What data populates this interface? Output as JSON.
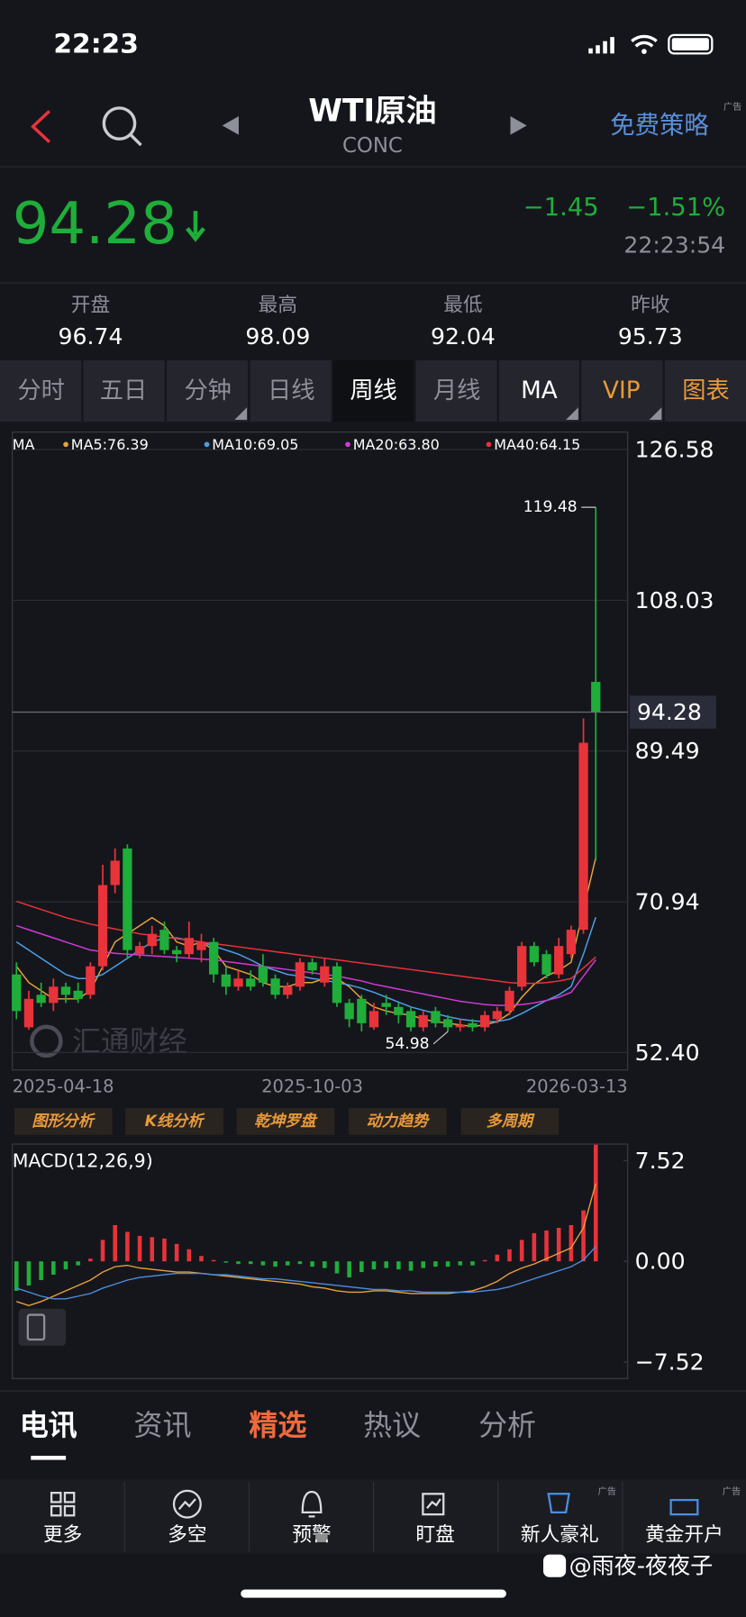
{
  "status_bar": {
    "time": "22:23"
  },
  "header": {
    "title": "WTI原油",
    "subtitle": "CONC",
    "action": "免费策略",
    "ad_tag": "广告"
  },
  "quote": {
    "price": "94.28",
    "change": "−1.45",
    "change_pct": "−1.51%",
    "time": "22:23:54",
    "stats": [
      {
        "label": "开盘",
        "value": "96.74"
      },
      {
        "label": "最高",
        "value": "98.09"
      },
      {
        "label": "最低",
        "value": "92.04"
      },
      {
        "label": "昨收",
        "value": "95.73"
      }
    ]
  },
  "period_tabs": [
    "分时",
    "五日",
    "分钟",
    "日线",
    "周线",
    "月线",
    "MA",
    "VIP",
    "图表"
  ],
  "chart_data": [
    {
      "type": "candlestick",
      "ma_label": "MA",
      "watermark": "汇通财经",
      "categories": [
        "2025-04-18",
        null,
        null,
        null,
        null,
        null,
        null,
        null,
        null,
        null,
        null,
        null,
        null,
        null,
        null,
        null,
        null,
        null,
        null,
        null,
        null,
        null,
        null,
        null,
        "2025-10-03",
        null,
        null,
        null,
        null,
        null,
        null,
        null,
        null,
        null,
        null,
        null,
        null,
        null,
        null,
        null,
        null,
        null,
        null,
        null,
        null,
        null,
        null,
        "2026-03-13"
      ],
      "candles": {
        "open": [
          62.0,
          55.5,
          59.5,
          58.5,
          60.5,
          60.0,
          59.5,
          63.0,
          73.0,
          77.5,
          64.5,
          65.5,
          67.5,
          65.0,
          64.5,
          65.0,
          66.0,
          62.0,
          60.5,
          61.5,
          63.0,
          61.5,
          59.5,
          60.5,
          63.5,
          61.0,
          63.0,
          58.5,
          59.0,
          55.5,
          58.5,
          58.0,
          57.5,
          55.5,
          57.5,
          56.5,
          55.5,
          56.0,
          55.5,
          56.5,
          57.5,
          60.5,
          65.5,
          64.5,
          62.0,
          64.5,
          67.5,
          98.0
        ],
        "high": [
          63.5,
          60.0,
          61.0,
          61.5,
          61.0,
          61.0,
          63.5,
          75.5,
          77.5,
          78.0,
          66.0,
          68.0,
          68.5,
          65.5,
          68.5,
          67.0,
          66.5,
          63.0,
          62.5,
          62.5,
          64.5,
          62.0,
          61.0,
          64.0,
          64.0,
          64.0,
          63.5,
          59.0,
          59.5,
          58.5,
          59.5,
          58.5,
          58.0,
          57.5,
          58.0,
          57.0,
          56.5,
          56.5,
          57.5,
          58.0,
          60.5,
          66.0,
          66.0,
          65.0,
          66.5,
          68.0,
          93.5,
          119.48
        ],
        "low": [
          56.5,
          55.2,
          58.0,
          57.5,
          58.5,
          58.5,
          59.0,
          62.5,
          72.0,
          64.0,
          64.0,
          64.5,
          64.5,
          63.5,
          64.0,
          63.5,
          61.0,
          59.5,
          60.0,
          60.0,
          60.5,
          59.0,
          59.0,
          60.0,
          62.0,
          60.5,
          58.0,
          55.5,
          55.0,
          55.2,
          57.0,
          56.0,
          55.0,
          55.0,
          55.5,
          54.98,
          55.0,
          55.0,
          55.0,
          56.0,
          57.0,
          60.0,
          63.0,
          61.5,
          61.5,
          64.0,
          67.0,
          76.0
        ],
        "close": [
          57.5,
          59.0,
          58.5,
          60.5,
          59.5,
          59.0,
          63.0,
          73.0,
          76.0,
          65.0,
          65.5,
          67.0,
          65.0,
          64.5,
          66.5,
          66.0,
          62.0,
          60.5,
          61.5,
          60.5,
          61.0,
          59.5,
          60.5,
          63.5,
          62.5,
          63.0,
          58.5,
          56.5,
          56.0,
          57.5,
          58.0,
          57.0,
          55.5,
          57.0,
          56.0,
          55.5,
          55.8,
          55.5,
          57.0,
          57.5,
          60.0,
          65.5,
          63.5,
          62.0,
          65.5,
          67.5,
          90.5,
          94.28
        ]
      },
      "up_color": "#e8333a",
      "down_color": "#1fae3a",
      "series": [
        {
          "name": "MA5:76.39",
          "color": "#e8a13a",
          "values": [
            63,
            61,
            60,
            59,
            59,
            59,
            60,
            63,
            66,
            67,
            68,
            69,
            68,
            66,
            65.5,
            66,
            65,
            63,
            62.5,
            62,
            61,
            60.5,
            60.5,
            61,
            61,
            61.5,
            61.5,
            60.5,
            59,
            58,
            57.5,
            57.2,
            57,
            56.5,
            56.2,
            56,
            55.8,
            55.6,
            55.8,
            56.2,
            57.2,
            59.2,
            60.8,
            61.8,
            62.5,
            63.5,
            70,
            76.39
          ]
        },
        {
          "name": "MA10:69.05",
          "color": "#4aa0e8",
          "values": [
            66,
            65,
            64,
            63,
            62,
            61.5,
            61.5,
            62,
            63,
            64,
            65,
            66,
            66.5,
            66.5,
            66.2,
            66,
            65.5,
            65,
            64.5,
            63.8,
            63,
            62.5,
            62,
            61.8,
            61.5,
            61.3,
            61,
            60.7,
            60.3,
            59.8,
            59.2,
            58.6,
            58,
            57.6,
            57.2,
            56.8,
            56.5,
            56.3,
            56.2,
            56.2,
            56.5,
            57.2,
            58,
            58.8,
            59.5,
            60.5,
            64.5,
            69.05
          ]
        },
        {
          "name": "MA20:63.80",
          "color": "#d23ad6",
          "values": [
            68,
            67.5,
            67,
            66.5,
            66,
            65.5,
            65,
            64.8,
            64.6,
            64.5,
            64.4,
            64.3,
            64.2,
            64.1,
            64,
            63.9,
            63.8,
            63.6,
            63.4,
            63.2,
            63,
            62.8,
            62.6,
            62.4,
            62.2,
            62,
            61.8,
            61.5,
            61.2,
            60.8,
            60.5,
            60.2,
            59.9,
            59.6,
            59.3,
            59,
            58.7,
            58.5,
            58.3,
            58.2,
            58.2,
            58.3,
            58.5,
            58.8,
            59.2,
            59.8,
            61.8,
            63.8
          ]
        },
        {
          "name": "MA40:64.15",
          "color": "#e8333a",
          "values": [
            71,
            70.5,
            70,
            69.5,
            69,
            68.6,
            68.2,
            67.9,
            67.6,
            67.3,
            67,
            66.8,
            66.6,
            66.4,
            66.2,
            66,
            65.8,
            65.6,
            65.4,
            65.2,
            65,
            64.8,
            64.6,
            64.4,
            64.2,
            64,
            63.8,
            63.6,
            63.4,
            63.2,
            63,
            62.8,
            62.6,
            62.4,
            62.2,
            62,
            61.8,
            61.6,
            61.4,
            61.2,
            61,
            60.9,
            60.9,
            61,
            61.2,
            61.5,
            62.8,
            64.15
          ]
        }
      ],
      "ylim": [
        50.25,
        128.73
      ],
      "yticks": [
        126.58,
        108.03,
        89.49,
        70.94,
        {
          "value": 52.4,
          "label": "52.40"
        }
      ],
      "grid": true
    },
    {
      "type": "macd",
      "title": "MACD(12,26,9)",
      "histogram": {
        "up_color": "#e8333a",
        "down_color": "#1fae3a",
        "values": [
          -2.2,
          -1.8,
          -1.4,
          -1.0,
          -0.6,
          -0.3,
          0.2,
          1.6,
          2.7,
          2.2,
          1.9,
          1.8,
          1.7,
          1.3,
          0.9,
          0.4,
          0.1,
          -0.1,
          -0.2,
          -0.2,
          -0.3,
          -0.4,
          -0.3,
          -0.2,
          -0.4,
          -0.5,
          -0.9,
          -1.2,
          -0.8,
          -0.6,
          -0.5,
          -0.6,
          -0.7,
          -0.5,
          -0.4,
          -0.4,
          -0.3,
          -0.3,
          0.1,
          0.5,
          0.9,
          1.6,
          2.1,
          2.3,
          2.5,
          2.7,
          3.8,
          8.7
        ]
      },
      "series": [
        {
          "color": "#e8a13a",
          "values": [
            -3,
            -3.3,
            -3,
            -2.6,
            -2.2,
            -1.8,
            -1.4,
            -0.8,
            -0.4,
            -0.3,
            -0.5,
            -0.6,
            -0.7,
            -0.8,
            -0.8,
            -0.9,
            -1.0,
            -1.1,
            -1.2,
            -1.3,
            -1.4,
            -1.5,
            -1.6,
            -1.7,
            -1.9,
            -2.0,
            -2.2,
            -2.3,
            -2.3,
            -2.2,
            -2.2,
            -2.3,
            -2.4,
            -2.4,
            -2.4,
            -2.4,
            -2.3,
            -2.2,
            -1.9,
            -1.5,
            -0.9,
            -0.5,
            -0.2,
            0.2,
            0.6,
            1.0,
            2.5,
            5.8
          ]
        },
        {
          "color": "#4a8fe0",
          "values": [
            -2.0,
            -2.3,
            -2.6,
            -2.8,
            -2.8,
            -2.6,
            -2.4,
            -2.0,
            -1.7,
            -1.4,
            -1.2,
            -1.1,
            -1.0,
            -0.9,
            -0.9,
            -0.9,
            -1.0,
            -1.0,
            -1.1,
            -1.2,
            -1.3,
            -1.3,
            -1.4,
            -1.5,
            -1.6,
            -1.7,
            -1.8,
            -1.9,
            -2.0,
            -2.1,
            -2.1,
            -2.2,
            -2.2,
            -2.3,
            -2.3,
            -2.3,
            -2.3,
            -2.3,
            -2.2,
            -2.1,
            -1.9,
            -1.6,
            -1.3,
            -1.0,
            -0.7,
            -0.4,
            0.1,
            1.1
          ]
        }
      ],
      "ylim": [
        -8.75,
        8.75
      ],
      "yticks": [
        7.52,
        {
          "value": 0,
          "label": "0.00"
        },
        {
          "value": -7.52,
          "label": "−7.52"
        }
      ]
    }
  ],
  "chart_tools": [
    "图形分析",
    "K线分析",
    "乾坤罗盘",
    "动力趋势",
    "多周期"
  ],
  "news_tabs": [
    "电讯",
    "资讯",
    "精选",
    "热议",
    "分析"
  ],
  "nav": [
    {
      "label": "更多"
    },
    {
      "label": "多空"
    },
    {
      "label": "预警"
    },
    {
      "label": "盯盘"
    },
    {
      "label": "新人豪礼",
      "ad_tag": "广告"
    },
    {
      "label": "黄金开户",
      "ad_tag": "广告"
    }
  ],
  "watermark": "@雨夜-夜夜子"
}
